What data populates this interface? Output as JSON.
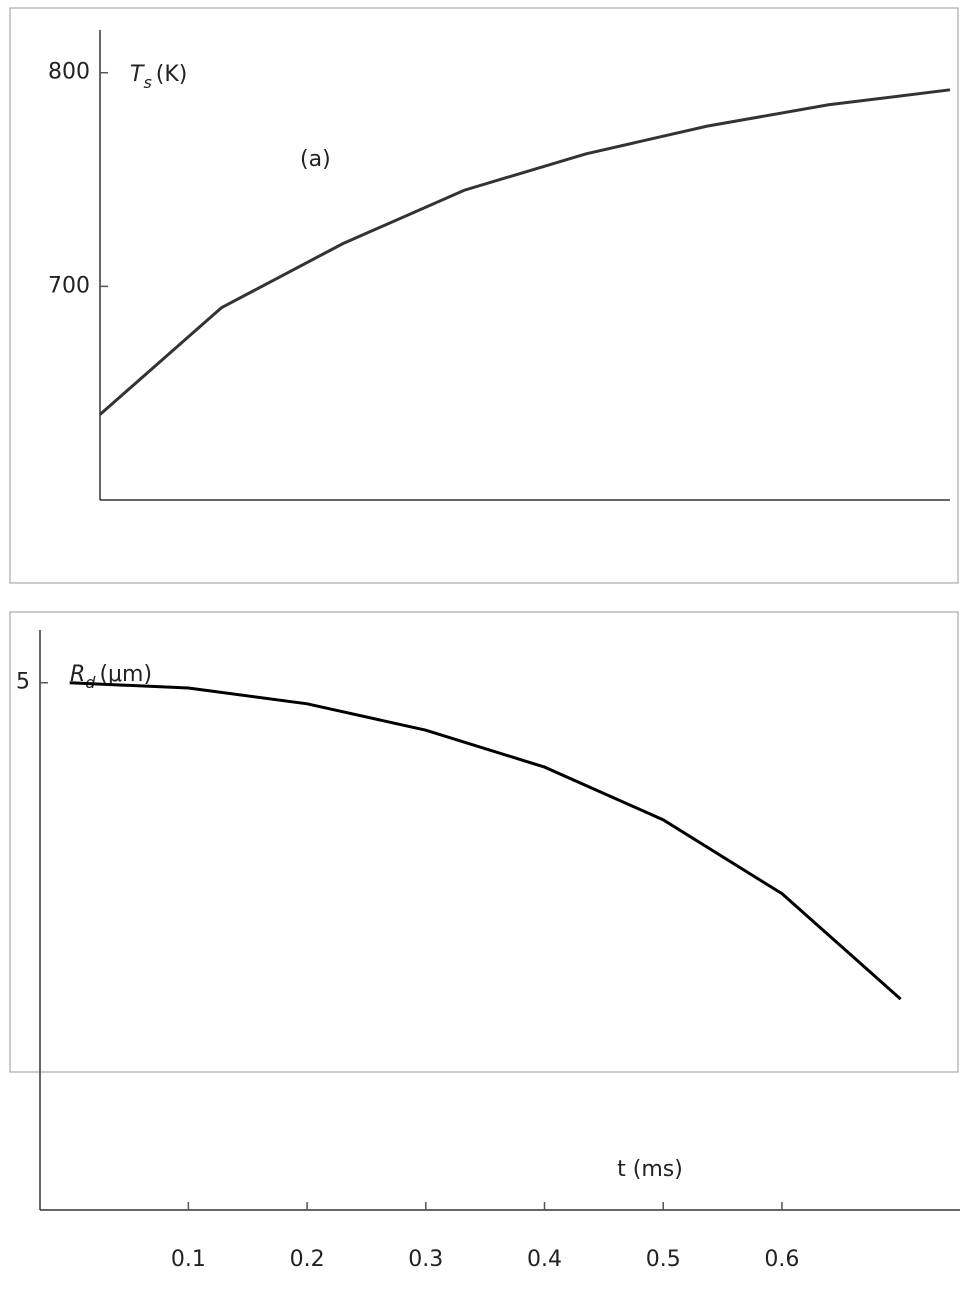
{
  "chart_data": [
    {
      "type": "line",
      "ylabel": "T",
      "ylabel_sub": "s",
      "ylabel_unit": "(K)",
      "annotation": "(a)",
      "x": [
        0,
        0.1,
        0.2,
        0.3,
        0.4,
        0.5,
        0.6,
        0.7
      ],
      "series": [
        {
          "color": "#333333",
          "values": [
            640,
            690,
            720,
            745,
            762,
            775,
            785,
            792
          ]
        }
      ],
      "xlim": [
        0,
        0.7
      ],
      "ylim": [
        600,
        820
      ],
      "yticks": [
        700,
        800
      ]
    },
    {
      "type": "line",
      "ylabel": "R",
      "ylabel_sub": "d",
      "ylabel_unit": "(μm)",
      "xlabel": "t (ms)",
      "x": [
        0,
        0.1,
        0.2,
        0.3,
        0.4,
        0.5,
        0.6,
        0.7
      ],
      "series": [
        {
          "color": "#000000",
          "values": [
            5,
            4.95,
            4.8,
            4.55,
            4.2,
            3.7,
            3.0,
            2.0
          ]
        }
      ],
      "xlim": [
        -0.025,
        0.75
      ],
      "ylim": [
        0,
        5.5
      ],
      "yticks": [
        5
      ],
      "xticks": [
        0.1,
        0.2,
        0.3,
        0.4,
        0.5,
        0.6
      ]
    }
  ]
}
